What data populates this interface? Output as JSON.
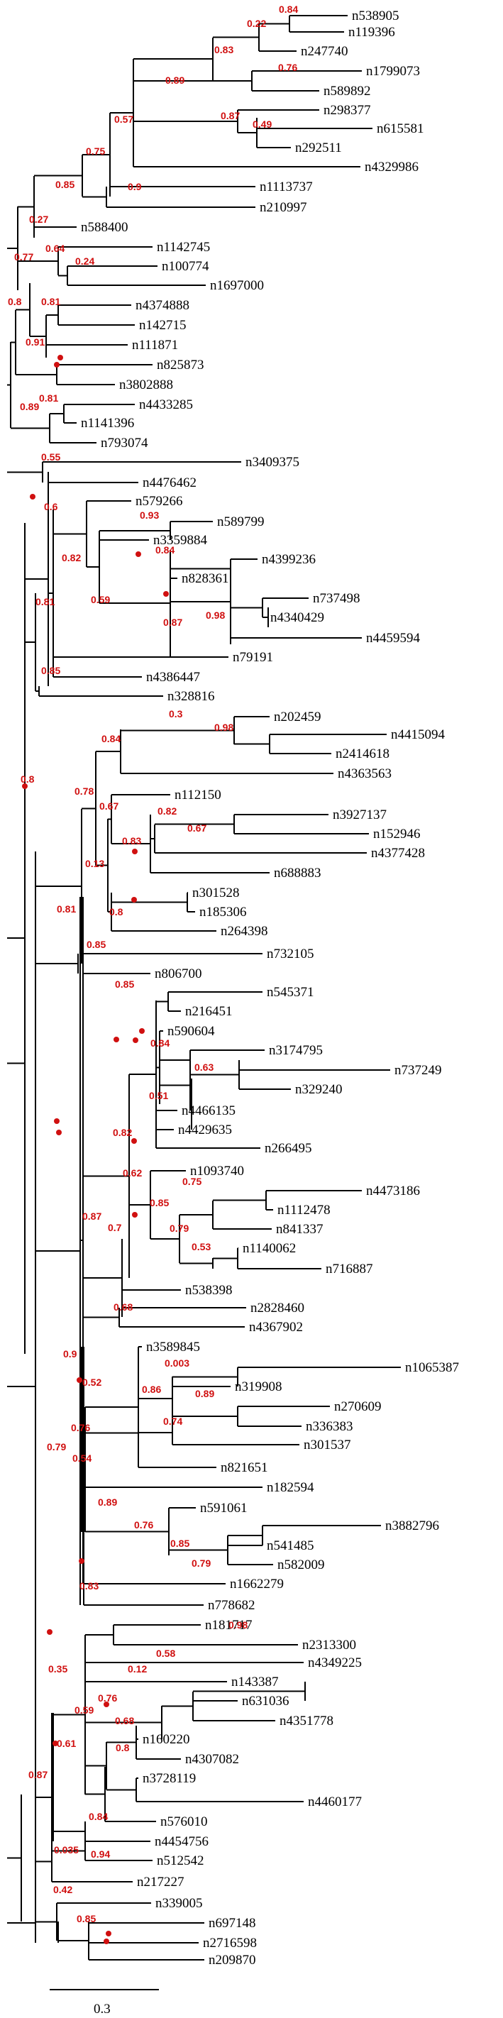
{
  "tree": {
    "tip_labels": [
      "n538905",
      "n119396",
      "n247740",
      "n1799073",
      "n589892",
      "n298377",
      "n615581",
      "n292511",
      "n4329986",
      "n1113737",
      "n210997",
      "n588400",
      "n1142745",
      "n100774",
      "n1697000",
      "n4374888",
      "n142715",
      "n111871",
      "n825873",
      "n3802888",
      "n4433285",
      "n1141396",
      "n793074",
      "n3409375",
      "n4476462",
      "n579266",
      "n589799",
      "n3359884",
      "n4399236",
      "n828361",
      "n737498",
      "n4340429",
      "n4459594",
      "n79191",
      "n4386447",
      "n328816",
      "n202459",
      "n4415094",
      "n2414618",
      "n4363563",
      "n112150",
      "n3927137",
      "n152946",
      "n4377428",
      "n688883",
      "n301528",
      "n185306",
      "n264398",
      "n732105",
      "n806700",
      "n545371",
      "n216451",
      "n590604",
      "n3174795",
      "n737249",
      "n329240",
      "n4466135",
      "n4429635",
      "n266495",
      "n1093740",
      "n4473186",
      "n1112478",
      "n841337",
      "n1140062",
      "n716887",
      "n538398",
      "n2828460",
      "n4367902",
      "n3589845",
      "n1065387",
      "n319908",
      "n270609",
      "n336383",
      "n301537",
      "n821651",
      "n182594",
      "n591061",
      "n3882796",
      "n541485",
      "n582009",
      "n1662279",
      "n778682",
      "n181717",
      "n2313300",
      "n4349225",
      "n143387",
      "n631036",
      "n4351778",
      "n160220",
      "n4307082",
      "n3728119",
      "n4460177",
      "n576010",
      "n4454756",
      "n512542",
      "n217227",
      "n339005",
      "n697148",
      "n2716598",
      "n209870"
    ],
    "support_labels": [
      "0.84",
      "0.22",
      "0.83",
      "0.76",
      "0.89",
      "0.87",
      "0.49",
      "0.57",
      "0.75",
      "0.9",
      "0.85",
      "0.27",
      "0.64",
      "0.24",
      "0.77",
      "0.81",
      "0.8",
      "0.91",
      "0",
      "0.81",
      "0.89",
      "0.55",
      "0",
      "0.6",
      "0.93",
      "0.82",
      "0.84",
      "0.59",
      "0",
      "0.87",
      "0.98",
      "0.81",
      "0.85",
      "0.3",
      "0.98",
      "0.84",
      "0.78",
      "0.67",
      "0.82",
      "0.67",
      "0.83",
      "0.13",
      "0",
      "0.8",
      "0.81",
      "0.85",
      "0.8",
      "0.85",
      "0",
      "0.84",
      "0.63",
      "0",
      "0.51",
      "0.82",
      "0",
      "0.62",
      "0.75",
      "0.85",
      "0.79",
      "0.53",
      "0.7",
      "0.87",
      "0.68",
      "0.003",
      "0.86",
      "0.89",
      "0.74",
      "0.52",
      "0.76",
      "0.54",
      "0.9",
      "0.89",
      "0.76",
      "0.85",
      "0.79",
      "0",
      "0.79",
      "0.83",
      "0.98",
      "0.58",
      "0.12",
      "0.76",
      "0.68",
      "0.59",
      "0.8",
      "0.35",
      "0.61",
      "0",
      "0.84",
      "0.94",
      "0.035",
      "0.87",
      "0.42",
      "0.85",
      "0"
    ],
    "scale_label": "0.3"
  }
}
